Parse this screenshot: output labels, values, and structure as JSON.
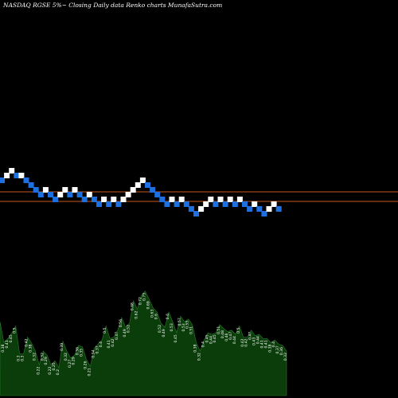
{
  "chart_data": {
    "type": "renko",
    "title": "NASDAQ RGSE 5%~  Closing Daily data  Renko  charts MunafaSutra.com",
    "colors": {
      "background": "#000000",
      "up_brick": "#ffffff",
      "down_brick": "#1e6fe0",
      "reference_line": "#c8571b",
      "volume_fill": "#0b3d0b",
      "volume_stroke": "#2a7a2a"
    },
    "reference_levels": [
      "upper",
      "lower"
    ],
    "bricks": [
      {
        "dir": "down",
        "level": 12
      },
      {
        "dir": "up",
        "level": 13
      },
      {
        "dir": "up",
        "level": 14
      },
      {
        "dir": "down",
        "level": 13
      },
      {
        "dir": "up",
        "level": 13
      },
      {
        "dir": "down",
        "level": 12
      },
      {
        "dir": "down",
        "level": 11
      },
      {
        "dir": "down",
        "level": 10
      },
      {
        "dir": "down",
        "level": 9
      },
      {
        "dir": "up",
        "level": 10
      },
      {
        "dir": "down",
        "level": 9
      },
      {
        "dir": "down",
        "level": 8
      },
      {
        "dir": "up",
        "level": 9
      },
      {
        "dir": "up",
        "level": 10
      },
      {
        "dir": "down",
        "level": 9
      },
      {
        "dir": "up",
        "level": 10
      },
      {
        "dir": "down",
        "level": 9
      },
      {
        "dir": "down",
        "level": 8
      },
      {
        "dir": "up",
        "level": 9
      },
      {
        "dir": "down",
        "level": 8
      },
      {
        "dir": "down",
        "level": 7
      },
      {
        "dir": "up",
        "level": 8
      },
      {
        "dir": "down",
        "level": 7
      },
      {
        "dir": "up",
        "level": 8
      },
      {
        "dir": "down",
        "level": 7
      },
      {
        "dir": "up",
        "level": 8
      },
      {
        "dir": "up",
        "level": 9
      },
      {
        "dir": "up",
        "level": 10
      },
      {
        "dir": "up",
        "level": 11
      },
      {
        "dir": "up",
        "level": 12
      },
      {
        "dir": "down",
        "level": 11
      },
      {
        "dir": "down",
        "level": 10
      },
      {
        "dir": "down",
        "level": 9
      },
      {
        "dir": "down",
        "level": 8
      },
      {
        "dir": "down",
        "level": 7
      },
      {
        "dir": "up",
        "level": 8
      },
      {
        "dir": "down",
        "level": 7
      },
      {
        "dir": "up",
        "level": 8
      },
      {
        "dir": "down",
        "level": 7
      },
      {
        "dir": "down",
        "level": 6
      },
      {
        "dir": "down",
        "level": 5
      },
      {
        "dir": "up",
        "level": 6
      },
      {
        "dir": "up",
        "level": 7
      },
      {
        "dir": "up",
        "level": 8
      },
      {
        "dir": "down",
        "level": 7
      },
      {
        "dir": "up",
        "level": 8
      },
      {
        "dir": "down",
        "level": 7
      },
      {
        "dir": "up",
        "level": 8
      },
      {
        "dir": "down",
        "level": 7
      },
      {
        "dir": "up",
        "level": 8
      },
      {
        "dir": "down",
        "level": 7
      },
      {
        "dir": "down",
        "level": 6
      },
      {
        "dir": "up",
        "level": 7
      },
      {
        "dir": "down",
        "level": 6
      },
      {
        "dir": "down",
        "level": 5
      },
      {
        "dir": "up",
        "level": 6
      },
      {
        "dir": "up",
        "level": 7
      },
      {
        "dir": "down",
        "level": 6
      }
    ],
    "volume": [
      {
        "value": 0.53,
        "label": "0.53"
      },
      {
        "value": 0.38,
        "label": "0.38"
      },
      {
        "value": 0.41,
        "label": "0.41"
      },
      {
        "value": 0.45,
        "label": "0.45"
      },
      {
        "value": 0.5,
        "label": "0.5"
      },
      {
        "value": 0.3,
        "label": "0.3"
      },
      {
        "value": 0.3,
        "label": "0.3"
      },
      {
        "value": 0.42,
        "label": "0.42"
      },
      {
        "value": 0.38,
        "label": "0.38"
      },
      {
        "value": 0.32,
        "label": "0.32"
      },
      {
        "value": 0.22,
        "label": "0.22"
      },
      {
        "value": 0.32,
        "label": "0.32"
      },
      {
        "value": 0.29,
        "label": "0.29"
      },
      {
        "value": 0.22,
        "label": "0.22"
      },
      {
        "value": 0.25,
        "label": "0.25"
      },
      {
        "value": 0.2,
        "label": "0.2"
      },
      {
        "value": 0.39,
        "label": "0.39"
      },
      {
        "value": 0.32,
        "label": "0.32"
      },
      {
        "value": 0.27,
        "label": "0.27"
      },
      {
        "value": 0.29,
        "label": "0.29"
      },
      {
        "value": 0.36,
        "label": "0.36"
      },
      {
        "value": 0.35,
        "label": "0.35"
      },
      {
        "value": 0.26,
        "label": "0.26"
      },
      {
        "value": 0.21,
        "label": "0.21"
      },
      {
        "value": 0.34,
        "label": "0.34"
      },
      {
        "value": 0.37,
        "label": "0.37"
      },
      {
        "value": 0.4,
        "label": "0.4"
      },
      {
        "value": 0.5,
        "label": "0.5"
      },
      {
        "value": 0.41,
        "label": "0.41"
      },
      {
        "value": 0.42,
        "label": "0.42"
      },
      {
        "value": 0.47,
        "label": "0.47"
      },
      {
        "value": 0.56,
        "label": "0.56"
      },
      {
        "value": 0.49,
        "label": "0.49"
      },
      {
        "value": 0.52,
        "label": "0.52"
      },
      {
        "value": 0.68,
        "label": "0.68"
      },
      {
        "value": 0.62,
        "label": "0.62"
      },
      {
        "value": 0.72,
        "label": "0.72"
      },
      {
        "value": 0.75,
        "label": "0.75"
      },
      {
        "value": 0.69,
        "label": "0.69"
      },
      {
        "value": 0.63,
        "label": "0.63"
      },
      {
        "value": 0.6,
        "label": "0.6"
      },
      {
        "value": 0.52,
        "label": "0.52"
      },
      {
        "value": 0.49,
        "label": "0.49"
      },
      {
        "value": 0.6,
        "label": "0.6"
      },
      {
        "value": 0.53,
        "label": "0.53"
      },
      {
        "value": 0.45,
        "label": "0.45"
      },
      {
        "value": 0.57,
        "label": "0.57"
      },
      {
        "value": 0.53,
        "label": "0.53"
      },
      {
        "value": 0.55,
        "label": "0.55"
      },
      {
        "value": 0.51,
        "label": "0.51"
      },
      {
        "value": 0.38,
        "label": "0.38"
      },
      {
        "value": 0.32,
        "label": "0.32"
      },
      {
        "value": 0.4,
        "label": "0.4"
      },
      {
        "value": 0.45,
        "label": "0.45"
      },
      {
        "value": 0.44,
        "label": "0.44"
      },
      {
        "value": 0.45,
        "label": "0.45"
      },
      {
        "value": 0.51,
        "label": "0.51"
      },
      {
        "value": 0.48,
        "label": "0.48"
      },
      {
        "value": 0.46,
        "label": "0.46"
      },
      {
        "value": 0.47,
        "label": "0.47"
      },
      {
        "value": 0.44,
        "label": "0.44"
      },
      {
        "value": 0.5,
        "label": "0.5"
      },
      {
        "value": 0.42,
        "label": "0.42"
      },
      {
        "value": 0.42,
        "label": "0.42"
      },
      {
        "value": 0.47,
        "label": "0.47"
      },
      {
        "value": 0.43,
        "label": "0.43"
      },
      {
        "value": 0.44,
        "label": "0.44"
      },
      {
        "value": 0.41,
        "label": "0.41"
      },
      {
        "value": 0.41,
        "label": "0.41"
      },
      {
        "value": 0.38,
        "label": "0.38"
      },
      {
        "value": 0.4,
        "label": "0.4"
      },
      {
        "value": 0.37,
        "label": "0.37"
      },
      {
        "value": 0.36,
        "label": "0.36"
      },
      {
        "value": 0.32,
        "label": "0.32"
      }
    ]
  }
}
